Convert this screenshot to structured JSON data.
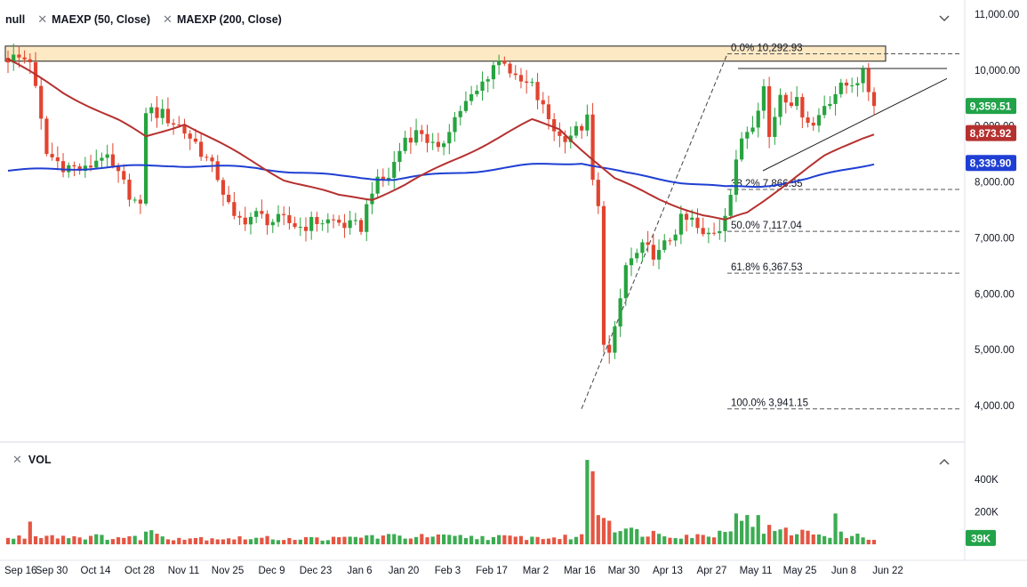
{
  "legend": {
    "symbol": "null",
    "indicators": [
      {
        "label": "MAEXP (50, Close)"
      },
      {
        "label": "MAEXP (200, Close)"
      }
    ],
    "close_glyph": "✕"
  },
  "volume_label": "VOL",
  "colors": {
    "up": "#27a33f",
    "down": "#e1442f",
    "ma50": "#b5312f",
    "ma200": "#1f3fd3",
    "resistance_fill": "#fde9c4",
    "current_price_badge": "#22a34a",
    "vol_badge": "#22a34a"
  },
  "icons": {
    "collapse": "chevron-down-icon",
    "volume_collapse": "chevron-up-icon"
  },
  "chart_data": {
    "type": "candlestick",
    "price_axis": {
      "min": 3700,
      "max": 11100,
      "ticks": [
        "11,000.00",
        "10,000.00",
        "9,000.00",
        "8,000.00",
        "7,000.00",
        "6,000.00",
        "5,000.00",
        "4,000.00"
      ]
    },
    "volume_axis": {
      "min": 0,
      "max": 520000,
      "ticks": [
        "400K",
        "200K"
      ]
    },
    "x_labels": [
      "Sep 16",
      "Sep 30",
      "Oct 14",
      "Oct 28",
      "Nov 11",
      "Nov 25",
      "Dec 9",
      "Dec 23",
      "Jan 6",
      "Jan 20",
      "Feb 3",
      "Feb 17",
      "Mar 2",
      "Mar 16",
      "Mar 30",
      "Apr 13",
      "Apr 27",
      "May 11",
      "May 25",
      "Jun 8",
      "Jun 22"
    ],
    "badges": [
      {
        "label": "9,359.51",
        "value": 9359.51,
        "color": "#22a34a"
      },
      {
        "label": "8,873.92",
        "value": 8873.92,
        "color": "#b5312f"
      },
      {
        "label": "8,339.90",
        "value": 8339.9,
        "color": "#1f3fd3"
      }
    ],
    "volume_badge": {
      "label": "39K",
      "value": 39000
    },
    "fibonacci": [
      {
        "label": "0.0% 10,292.93",
        "value": 10292.93
      },
      {
        "label": "38.2% 7,866.55",
        "value": 7866.55
      },
      {
        "label": "50.0% 7,117.04",
        "value": 7117.04
      },
      {
        "label": "61.8% 6,367.53",
        "value": 6367.53
      },
      {
        "label": "100.0% 3,941.15",
        "value": 3941.15
      }
    ],
    "resistance_zone": {
      "low": 10160,
      "high": 10430
    },
    "series": [
      {
        "name": "MAEXP (50, Close)"
      },
      {
        "name": "MAEXP (200, Close)"
      }
    ],
    "price_anchors": [
      [
        0,
        10220
      ],
      [
        4,
        10200
      ],
      [
        7,
        8500
      ],
      [
        10,
        8300
      ],
      [
        14,
        8200
      ],
      [
        17,
        8500
      ],
      [
        20,
        8100
      ],
      [
        24,
        7500
      ],
      [
        25,
        9300
      ],
      [
        28,
        9200
      ],
      [
        31,
        9000
      ],
      [
        34,
        8700
      ],
      [
        38,
        8100
      ],
      [
        41,
        7300
      ],
      [
        45,
        7400
      ],
      [
        48,
        7300
      ],
      [
        50,
        7300
      ],
      [
        53,
        7200
      ],
      [
        56,
        7300
      ],
      [
        59,
        7300
      ],
      [
        62,
        7200
      ],
      [
        64,
        7200
      ],
      [
        66,
        7900
      ],
      [
        69,
        8100
      ],
      [
        72,
        8800
      ],
      [
        75,
        8900
      ],
      [
        78,
        8500
      ],
      [
        80,
        9000
      ],
      [
        82,
        9300
      ],
      [
        85,
        9600
      ],
      [
        88,
        10100
      ],
      [
        90,
        10200
      ],
      [
        92,
        9800
      ],
      [
        95,
        9700
      ],
      [
        97,
        9300
      ],
      [
        100,
        8800
      ],
      [
        103,
        8900
      ],
      [
        105,
        9100
      ],
      [
        106,
        8000
      ],
      [
        107,
        7500
      ],
      [
        108,
        5200
      ],
      [
        109,
        4900
      ],
      [
        110,
        5300
      ],
      [
        112,
        6500
      ],
      [
        115,
        6800
      ],
      [
        118,
        6700
      ],
      [
        120,
        7000
      ],
      [
        122,
        7300
      ],
      [
        124,
        7300
      ],
      [
        126,
        7000
      ],
      [
        129,
        7200
      ],
      [
        131,
        7800
      ],
      [
        133,
        8800
      ],
      [
        135,
        9100
      ],
      [
        137,
        9700
      ],
      [
        138,
        8800
      ],
      [
        140,
        9600
      ],
      [
        143,
        9400
      ],
      [
        146,
        9000
      ],
      [
        148,
        9400
      ],
      [
        150,
        9600
      ],
      [
        153,
        9800
      ],
      [
        155,
        9900
      ],
      [
        157,
        9400
      ]
    ],
    "volume_anchors": [
      [
        0,
        35000
      ],
      [
        6,
        60000
      ],
      [
        10,
        50000
      ],
      [
        24,
        40000
      ],
      [
        25,
        80000
      ],
      [
        30,
        40000
      ],
      [
        60,
        35000
      ],
      [
        65,
        50000
      ],
      [
        100,
        40000
      ],
      [
        104,
        50000
      ],
      [
        105,
        200000
      ],
      [
        106,
        460000
      ],
      [
        107,
        250000
      ],
      [
        108,
        180000
      ],
      [
        110,
        120000
      ],
      [
        113,
        80000
      ],
      [
        120,
        60000
      ],
      [
        126,
        50000
      ],
      [
        130,
        80000
      ],
      [
        132,
        180000
      ],
      [
        134,
        140000
      ],
      [
        136,
        100000
      ],
      [
        140,
        80000
      ],
      [
        150,
        60000
      ],
      [
        157,
        40000
      ]
    ],
    "volume_spikes": [
      [
        4,
        140000
      ],
      [
        105,
        520000
      ],
      [
        106,
        450000
      ],
      [
        132,
        190000
      ],
      [
        136,
        180000
      ],
      [
        150,
        190000
      ]
    ],
    "indicator_anchors": {
      "ma50": [
        [
          0,
          10200
        ],
        [
          10,
          9600
        ],
        [
          20,
          9100
        ],
        [
          25,
          8800
        ],
        [
          32,
          9050
        ],
        [
          40,
          8600
        ],
        [
          50,
          8050
        ],
        [
          60,
          7750
        ],
        [
          66,
          7700
        ],
        [
          72,
          7950
        ],
        [
          80,
          8350
        ],
        [
          90,
          8850
        ],
        [
          95,
          9100
        ],
        [
          100,
          8950
        ],
        [
          105,
          8500
        ],
        [
          110,
          8050
        ],
        [
          118,
          7700
        ],
        [
          126,
          7400
        ],
        [
          130,
          7300
        ],
        [
          134,
          7450
        ],
        [
          140,
          7900
        ],
        [
          148,
          8450
        ],
        [
          155,
          8800
        ],
        [
          157,
          8873.92
        ]
      ],
      "ma200": [
        [
          0,
          8200
        ],
        [
          15,
          8250
        ],
        [
          30,
          8300
        ],
        [
          45,
          8250
        ],
        [
          60,
          8100
        ],
        [
          70,
          8050
        ],
        [
          85,
          8200
        ],
        [
          95,
          8300
        ],
        [
          104,
          8350
        ],
        [
          112,
          8150
        ],
        [
          122,
          8000
        ],
        [
          130,
          7900
        ],
        [
          136,
          7920
        ],
        [
          145,
          8050
        ],
        [
          157,
          8339.9
        ]
      ]
    },
    "bars": 158
  }
}
